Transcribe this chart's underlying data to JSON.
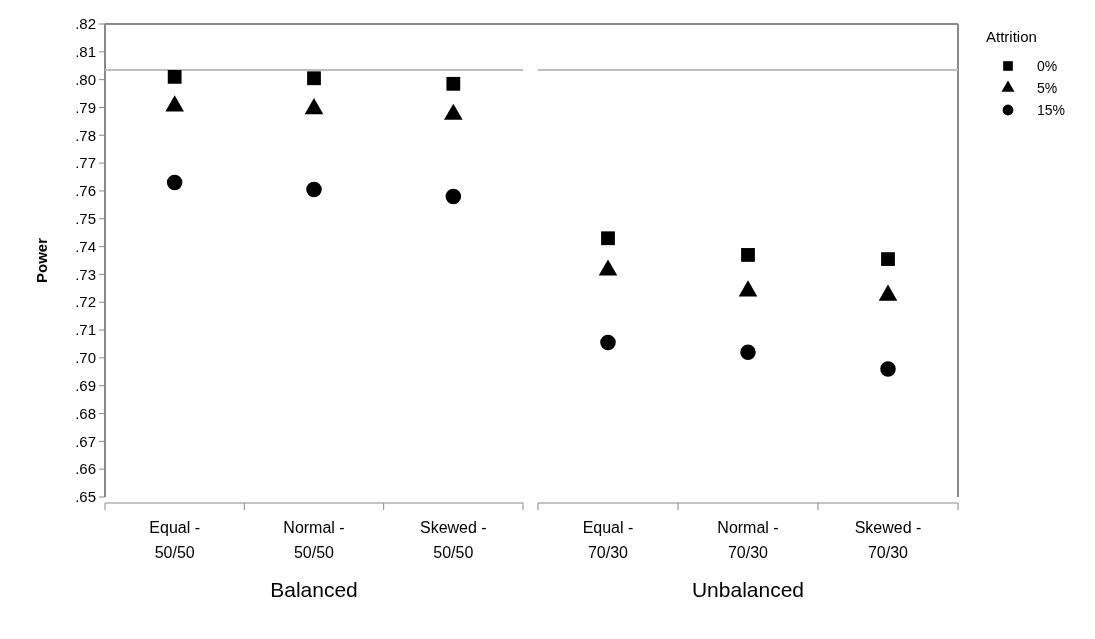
{
  "chart_data": [
    {
      "type": "scatter",
      "ylabel": "Power",
      "xlabel": "Balanced",
      "categories": [
        "Equal - 50/50",
        "Normal - 50/50",
        "Skewed - 50/50"
      ],
      "ylim": [
        0.65,
        0.82
      ],
      "yticks": [
        {
          "value": 0.65,
          "label": ".65"
        },
        {
          "value": 0.66,
          "label": ".66"
        },
        {
          "value": 0.67,
          "label": ".67"
        },
        {
          "value": 0.68,
          "label": ".68"
        },
        {
          "value": 0.69,
          "label": ".69"
        },
        {
          "value": 0.7,
          "label": ".70"
        },
        {
          "value": 0.71,
          "label": ".71"
        },
        {
          "value": 0.72,
          "label": ".72"
        },
        {
          "value": 0.73,
          "label": ".73"
        },
        {
          "value": 0.74,
          "label": ".74"
        },
        {
          "value": 0.75,
          "label": ".75"
        },
        {
          "value": 0.76,
          "label": ".76"
        },
        {
          "value": 0.77,
          "label": ".77"
        },
        {
          "value": 0.78,
          "label": ".78"
        },
        {
          "value": 0.79,
          "label": ".79"
        },
        {
          "value": 0.8,
          "label": ".80"
        },
        {
          "value": 0.81,
          "label": ".81"
        },
        {
          "value": 0.82,
          "label": ".82"
        }
      ],
      "ref_lines": [
        {
          "axis": "y",
          "value": 0.8035,
          "color": "#bfbfbf"
        }
      ],
      "grid": false,
      "legend": false,
      "series": [
        {
          "color": "#000000",
          "marker": "square",
          "values": [
            0.801,
            0.8005,
            0.7985
          ]
        },
        {
          "color": "#000000",
          "marker": "triangle",
          "values": [
            0.7905,
            0.7895,
            0.7875
          ]
        },
        {
          "color": "#000000",
          "marker": "circle",
          "values": [
            0.763,
            0.7605,
            0.758
          ]
        }
      ]
    },
    {
      "type": "scatter",
      "xlabel": "Unbalanced",
      "legend_title": "Attrition",
      "categories": [
        "Equal - 70/30",
        "Normal - 70/30",
        "Skewed - 70/30"
      ],
      "ylim": [
        0.65,
        0.82
      ],
      "tick_labels": "x",
      "ref_lines": [
        {
          "axis": "y",
          "value": 0.8035,
          "color": "#bfbfbf"
        }
      ],
      "grid": false,
      "legend": "right",
      "series": [
        {
          "name": "0%",
          "color": "#000000",
          "marker": "square",
          "values": [
            0.743,
            0.737,
            0.7355
          ]
        },
        {
          "name": "5%",
          "color": "#000000",
          "marker": "triangle",
          "values": [
            0.7315,
            0.724,
            0.7225
          ]
        },
        {
          "name": "15%",
          "color": "#000000",
          "marker": "circle",
          "values": [
            0.7055,
            0.702,
            0.696
          ]
        }
      ]
    }
  ]
}
